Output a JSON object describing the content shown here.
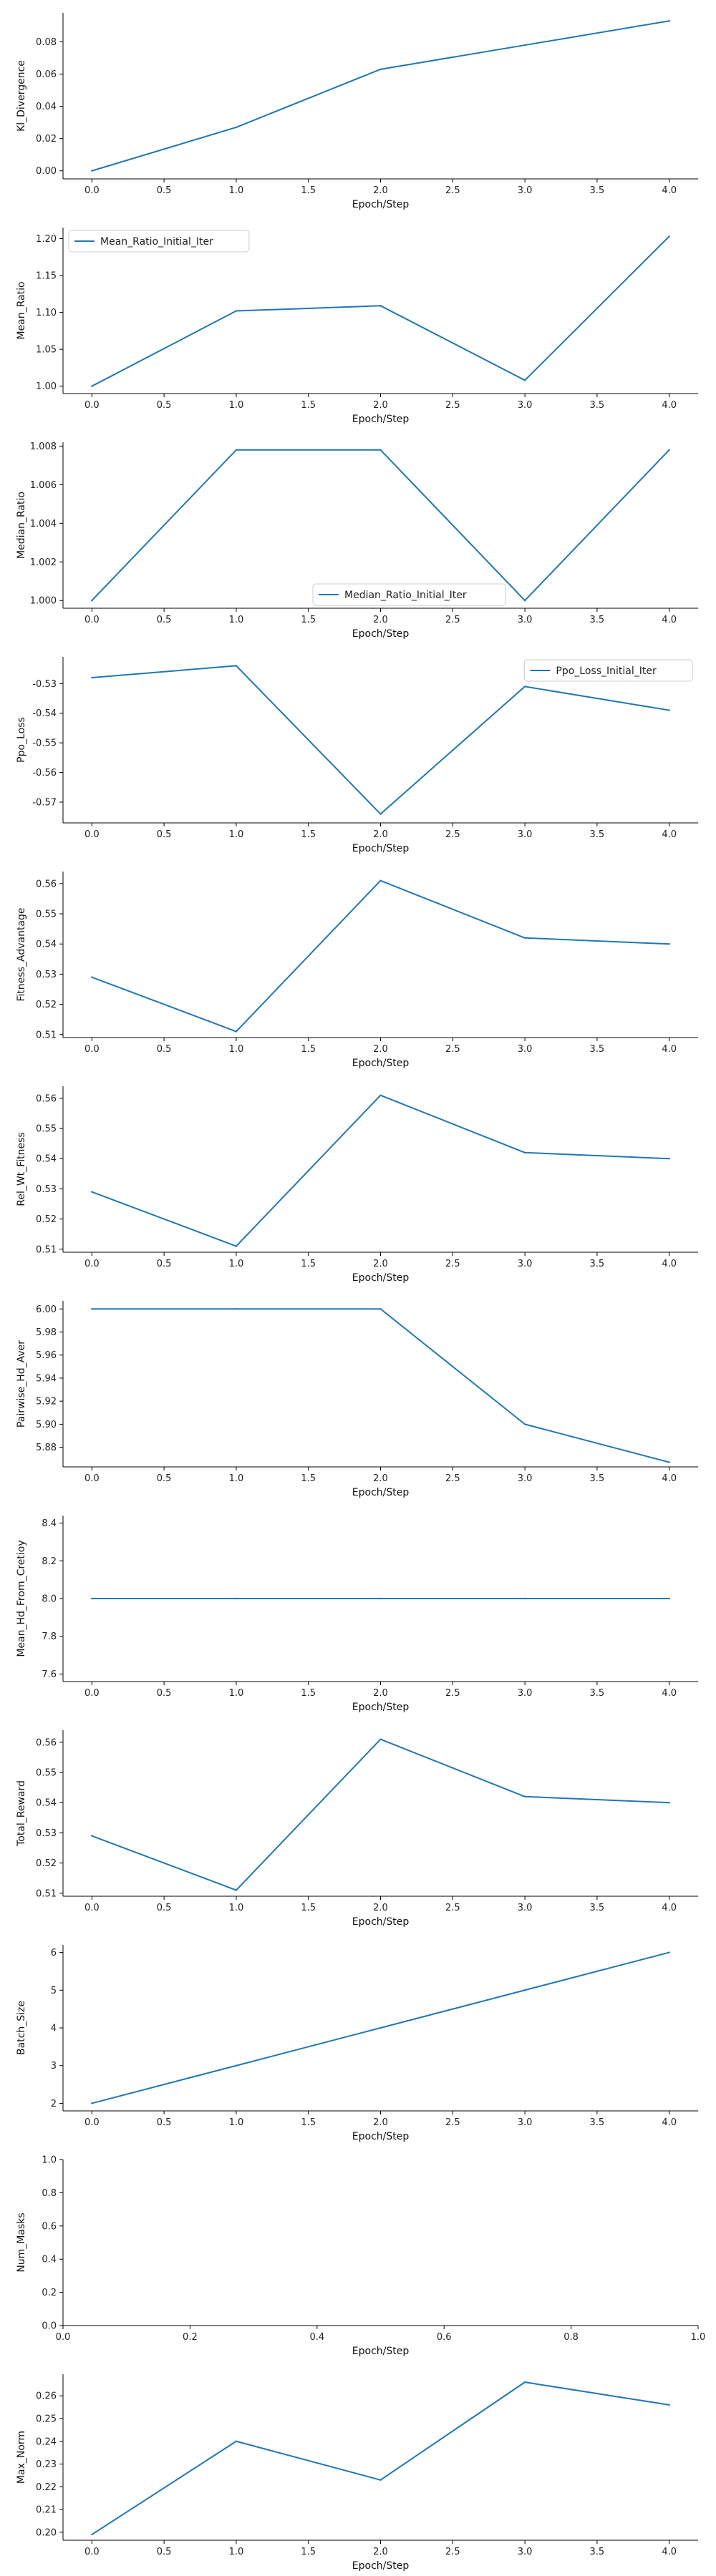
{
  "chart_data": [
    {
      "type": "line",
      "xlabel": "Epoch/Step",
      "ylabel": "Kl_Divergence",
      "x": [
        0,
        1,
        2,
        3,
        4
      ],
      "xlim": [
        -0.2,
        4.2
      ],
      "xticks": [
        "0.0",
        "0.5",
        "1.0",
        "1.5",
        "2.0",
        "2.5",
        "3.0",
        "3.5",
        "4.0"
      ],
      "ylim": [
        -0.005,
        0.098
      ],
      "yticks": [
        "0.00",
        "0.02",
        "0.04",
        "0.06",
        "0.08"
      ],
      "series": [
        {
          "values": [
            0.0,
            0.027,
            0.063,
            0.078,
            0.093
          ]
        }
      ],
      "grid": false
    },
    {
      "type": "line",
      "xlabel": "Epoch/Step",
      "ylabel": "Mean_Ratio",
      "x": [
        0,
        1,
        2,
        3,
        4
      ],
      "xlim": [
        -0.2,
        4.2
      ],
      "xticks": [
        "0.0",
        "0.5",
        "1.0",
        "1.5",
        "2.0",
        "2.5",
        "3.0",
        "3.5",
        "4.0"
      ],
      "ylim": [
        0.99,
        1.215
      ],
      "yticks": [
        "1.00",
        "1.05",
        "1.10",
        "1.15",
        "1.20"
      ],
      "series": [
        {
          "name": "Mean_Ratio_Initial_Iter",
          "values": [
            1.0,
            1.102,
            1.109,
            1.008,
            1.203
          ]
        }
      ],
      "legend": "top-left",
      "grid": false
    },
    {
      "type": "line",
      "xlabel": "Epoch/Step",
      "ylabel": "Median_Ratio",
      "x": [
        0,
        1,
        2,
        3,
        4
      ],
      "xlim": [
        -0.2,
        4.2
      ],
      "xticks": [
        "0.0",
        "0.5",
        "1.0",
        "1.5",
        "2.0",
        "2.5",
        "3.0",
        "3.5",
        "4.0"
      ],
      "ylim": [
        0.9996,
        1.0082
      ],
      "yticks": [
        "1.000",
        "1.002",
        "1.004",
        "1.006",
        "1.008"
      ],
      "series": [
        {
          "name": "Median_Ratio_Initial_Iter",
          "values": [
            1.0,
            1.0078,
            1.0078,
            1.0,
            1.0078
          ]
        }
      ],
      "legend": "bottom-center",
      "grid": false
    },
    {
      "type": "line",
      "xlabel": "Epoch/Step",
      "ylabel": "Ppo_Loss",
      "x": [
        0,
        1,
        2,
        3,
        4
      ],
      "xlim": [
        -0.2,
        4.2
      ],
      "xticks": [
        "0.0",
        "0.5",
        "1.0",
        "1.5",
        "2.0",
        "2.5",
        "3.0",
        "3.5",
        "4.0"
      ],
      "ylim": [
        -0.577,
        -0.521
      ],
      "yticks": [
        "-0.57",
        "-0.56",
        "-0.55",
        "-0.54",
        "-0.53"
      ],
      "series": [
        {
          "name": "Ppo_Loss_Initial_Iter",
          "values": [
            -0.528,
            -0.524,
            -0.574,
            -0.531,
            -0.539
          ]
        }
      ],
      "legend": "top-right",
      "grid": false
    },
    {
      "type": "line",
      "xlabel": "Epoch/Step",
      "ylabel": "Fitness_Advantage",
      "x": [
        0,
        1,
        2,
        3,
        4
      ],
      "xlim": [
        -0.2,
        4.2
      ],
      "xticks": [
        "0.0",
        "0.5",
        "1.0",
        "1.5",
        "2.0",
        "2.5",
        "3.0",
        "3.5",
        "4.0"
      ],
      "ylim": [
        0.509,
        0.564
      ],
      "yticks": [
        "0.51",
        "0.52",
        "0.53",
        "0.54",
        "0.55",
        "0.56"
      ],
      "series": [
        {
          "values": [
            0.529,
            0.511,
            0.561,
            0.542,
            0.54
          ]
        }
      ],
      "grid": false
    },
    {
      "type": "line",
      "xlabel": "Epoch/Step",
      "ylabel": "Rel_Wt_Fitness",
      "x": [
        0,
        1,
        2,
        3,
        4
      ],
      "xlim": [
        -0.2,
        4.2
      ],
      "xticks": [
        "0.0",
        "0.5",
        "1.0",
        "1.5",
        "2.0",
        "2.5",
        "3.0",
        "3.5",
        "4.0"
      ],
      "ylim": [
        0.509,
        0.564
      ],
      "yticks": [
        "0.51",
        "0.52",
        "0.53",
        "0.54",
        "0.55",
        "0.56"
      ],
      "series": [
        {
          "values": [
            0.529,
            0.511,
            0.561,
            0.542,
            0.54
          ]
        }
      ],
      "grid": false
    },
    {
      "type": "line",
      "xlabel": "Epoch/Step",
      "ylabel": "Pairwise_Hd_Aver",
      "x": [
        0,
        1,
        2,
        3,
        4
      ],
      "xlim": [
        -0.2,
        4.2
      ],
      "xticks": [
        "0.0",
        "0.5",
        "1.0",
        "1.5",
        "2.0",
        "2.5",
        "3.0",
        "3.5",
        "4.0"
      ],
      "ylim": [
        5.863,
        6.007
      ],
      "yticks": [
        "5.88",
        "5.90",
        "5.92",
        "5.94",
        "5.96",
        "5.98",
        "6.00"
      ],
      "series": [
        {
          "values": [
            6.0,
            6.0,
            6.0,
            5.9,
            5.867
          ]
        }
      ],
      "grid": false
    },
    {
      "type": "line",
      "xlabel": "Epoch/Step",
      "ylabel": "Mean_Hd_From_Cretioy",
      "x": [
        0,
        1,
        2,
        3,
        4
      ],
      "xlim": [
        -0.2,
        4.2
      ],
      "xticks": [
        "0.0",
        "0.5",
        "1.0",
        "1.5",
        "2.0",
        "2.5",
        "3.0",
        "3.5",
        "4.0"
      ],
      "ylim": [
        7.56,
        8.44
      ],
      "yticks": [
        "7.6",
        "7.8",
        "8.0",
        "8.2",
        "8.4"
      ],
      "series": [
        {
          "values": [
            8.0,
            8.0,
            8.0,
            8.0,
            8.0
          ]
        }
      ],
      "grid": false
    },
    {
      "type": "line",
      "xlabel": "Epoch/Step",
      "ylabel": "Total_Reward",
      "x": [
        0,
        1,
        2,
        3,
        4
      ],
      "xlim": [
        -0.2,
        4.2
      ],
      "xticks": [
        "0.0",
        "0.5",
        "1.0",
        "1.5",
        "2.0",
        "2.5",
        "3.0",
        "3.5",
        "4.0"
      ],
      "ylim": [
        0.509,
        0.564
      ],
      "yticks": [
        "0.51",
        "0.52",
        "0.53",
        "0.54",
        "0.55",
        "0.56"
      ],
      "series": [
        {
          "values": [
            0.529,
            0.511,
            0.561,
            0.542,
            0.54
          ]
        }
      ],
      "grid": false
    },
    {
      "type": "line",
      "xlabel": "Epoch/Step",
      "ylabel": "Batch_Size",
      "x": [
        0,
        1,
        2,
        3,
        4
      ],
      "xlim": [
        -0.2,
        4.2
      ],
      "xticks": [
        "0.0",
        "0.5",
        "1.0",
        "1.5",
        "2.0",
        "2.5",
        "3.0",
        "3.5",
        "4.0"
      ],
      "ylim": [
        1.8,
        6.2
      ],
      "yticks": [
        "2",
        "3",
        "4",
        "5",
        "6"
      ],
      "series": [
        {
          "values": [
            2,
            3,
            4,
            5,
            6
          ]
        }
      ],
      "grid": false
    },
    {
      "type": "line",
      "xlabel": "Epoch/Step",
      "ylabel": "Num_Masks",
      "x": [],
      "xlim": [
        0,
        1
      ],
      "xticks": [
        "0.0",
        "0.2",
        "0.4",
        "0.6",
        "0.8",
        "1.0"
      ],
      "ylim": [
        0,
        1
      ],
      "yticks": [
        "0.0",
        "0.2",
        "0.4",
        "0.6",
        "0.8",
        "1.0"
      ],
      "series": [],
      "grid": false
    },
    {
      "type": "line",
      "xlabel": "Epoch/Step",
      "ylabel": "Max_Norm",
      "x": [
        0,
        1,
        2,
        3,
        4
      ],
      "xlim": [
        -0.2,
        4.2
      ],
      "xticks": [
        "0.0",
        "0.5",
        "1.0",
        "1.5",
        "2.0",
        "2.5",
        "3.0",
        "3.5",
        "4.0"
      ],
      "ylim": [
        0.1965,
        0.2695
      ],
      "yticks": [
        "0.20",
        "0.21",
        "0.22",
        "0.23",
        "0.24",
        "0.25",
        "0.26"
      ],
      "series": [
        {
          "values": [
            0.199,
            0.24,
            0.223,
            0.266,
            0.256
          ]
        }
      ],
      "grid": false
    }
  ],
  "colors": {
    "line": "#1f77b4",
    "axis": "#000000",
    "text": "#222222"
  }
}
